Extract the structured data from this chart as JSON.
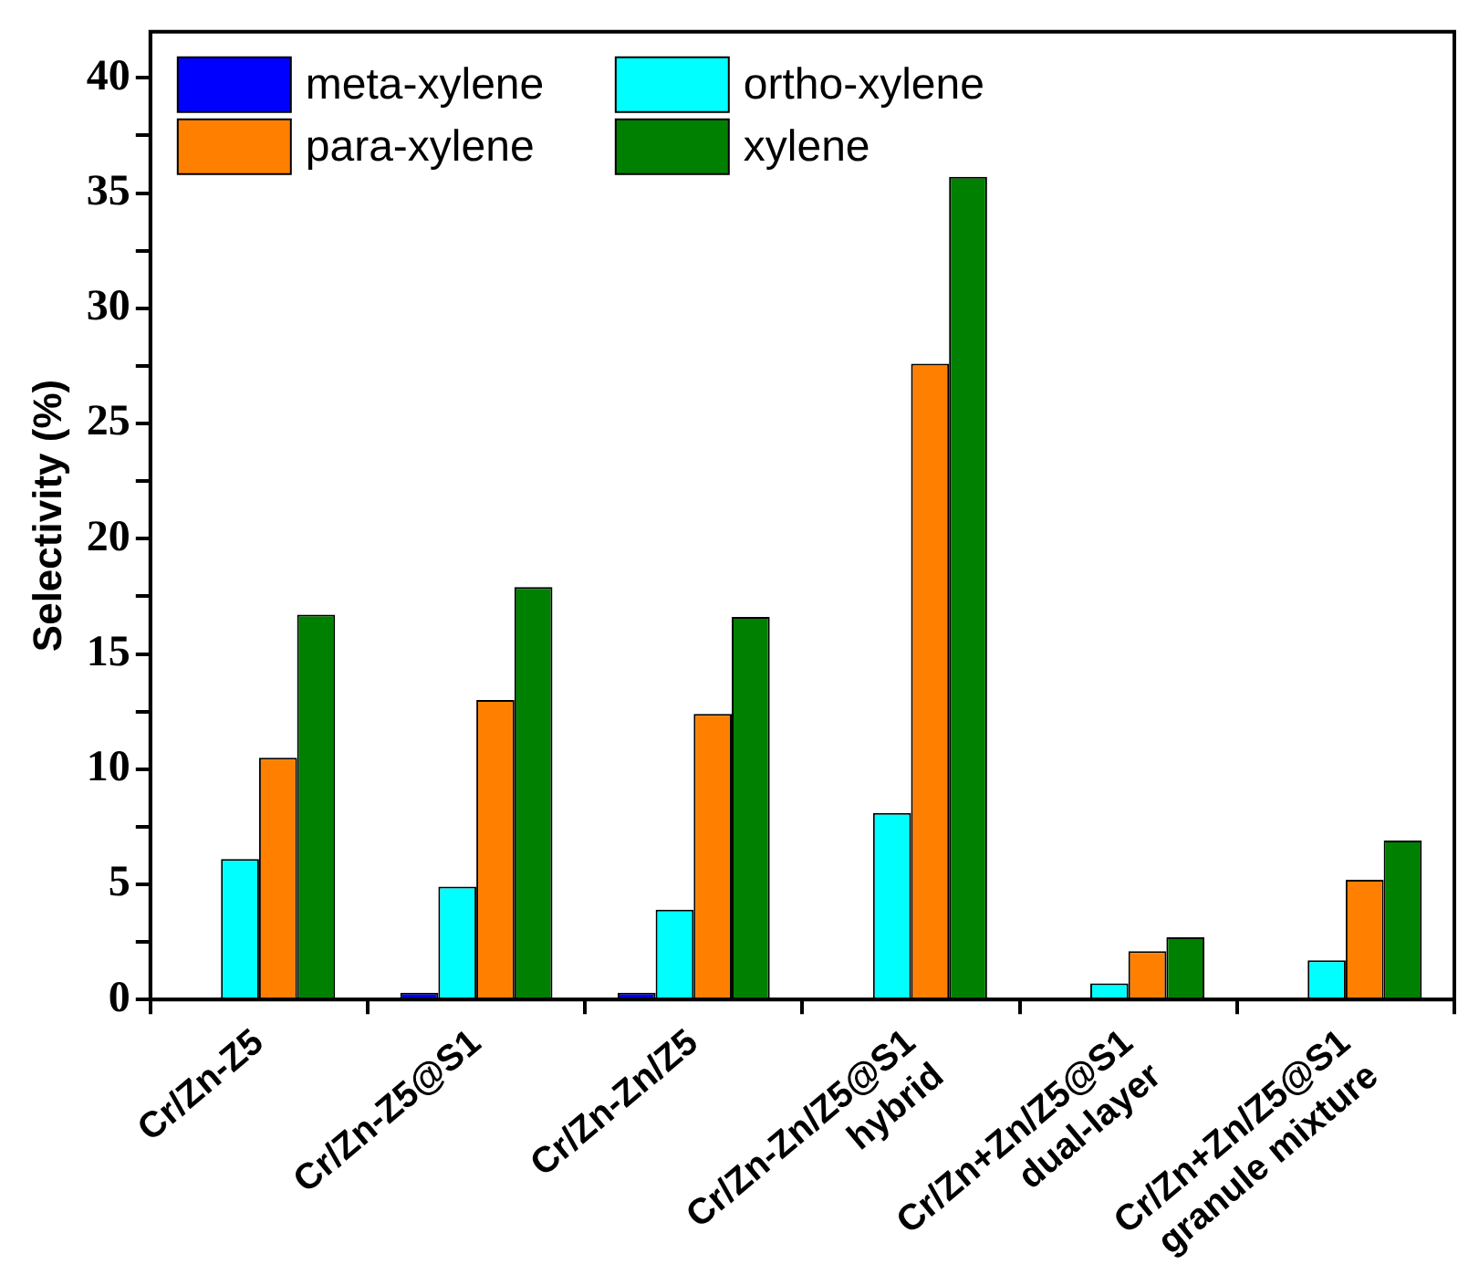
{
  "chart_data": {
    "type": "bar",
    "ylabel": "Selectivity (%)",
    "categories": [
      "Cr/Zn-Z5",
      "Cr/Zn-Z5@S1",
      "Cr/Zn-Zn/Z5",
      "Cr/Zn-Zn/Z5@S1\nhybrid",
      "Cr/Zn+Zn/Z5@S1\ndual-layer",
      "Cr/Zn+Zn/Z5@S1\ngranule mixture"
    ],
    "series": [
      {
        "name": "meta-xylene",
        "color": "#0000ff",
        "values": [
          null,
          0.3,
          0.3,
          0,
          0,
          0
        ]
      },
      {
        "name": "ortho-xylene",
        "color": "#00ffff",
        "values": [
          6.1,
          4.9,
          3.9,
          8.1,
          0.7,
          1.7
        ]
      },
      {
        "name": "para-xylene",
        "color": "#ff8000",
        "values": [
          10.5,
          13.0,
          12.4,
          27.6,
          2.1,
          5.2
        ]
      },
      {
        "name": "xylene",
        "color": "#008000",
        "values": [
          16.7,
          17.9,
          16.6,
          35.7,
          2.7,
          6.9
        ]
      }
    ],
    "ylim": [
      0,
      42
    ],
    "yticks": [
      0,
      {
        "value": 2.5,
        "label": null
      },
      5,
      {
        "value": 7.5,
        "label": null
      },
      10,
      {
        "value": 12.5,
        "label": null
      },
      15,
      {
        "value": 17.5,
        "label": null
      },
      20,
      {
        "value": 22.5,
        "label": null
      },
      25,
      {
        "value": 27.5,
        "label": null
      },
      30,
      {
        "value": 32.5,
        "label": null
      },
      35,
      {
        "value": 37.5,
        "label": null
      },
      40
    ],
    "grid": false,
    "legend": "top left"
  }
}
